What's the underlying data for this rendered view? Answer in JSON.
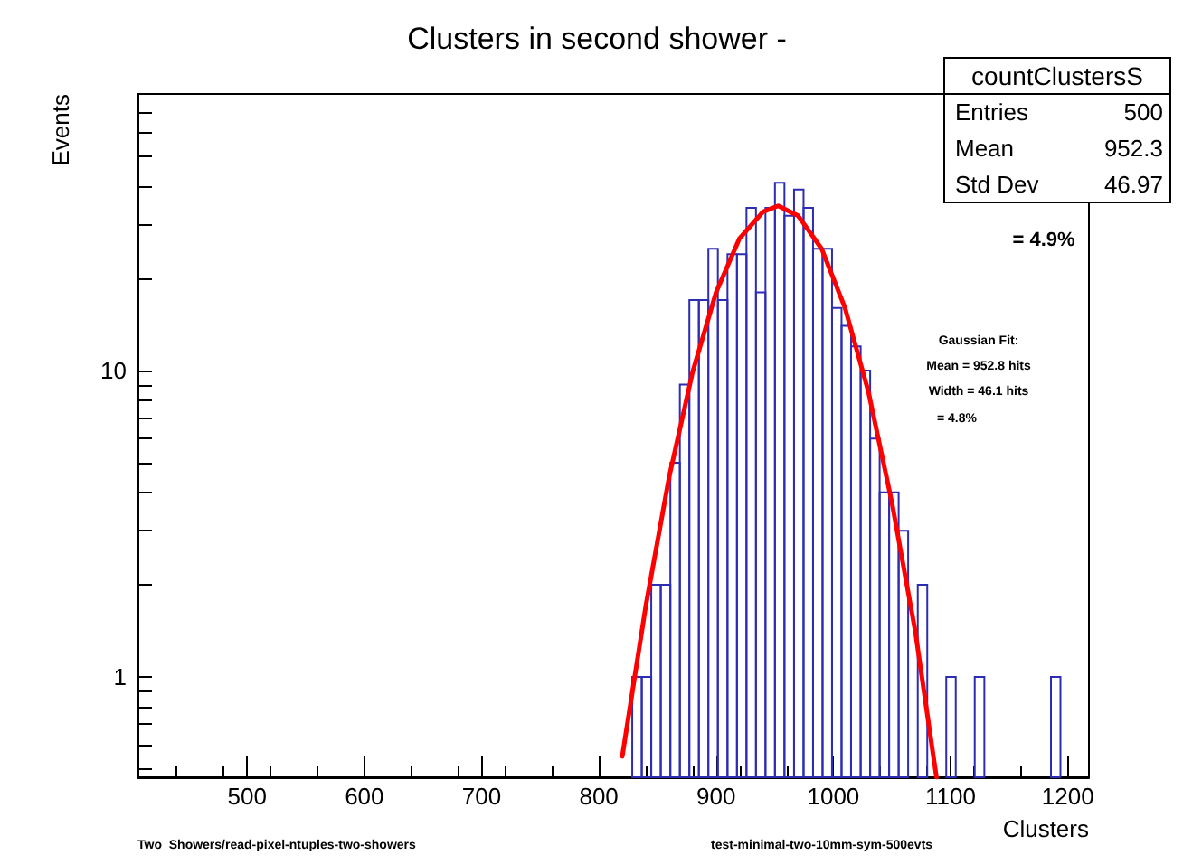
{
  "chart_data": {
    "type": "histogram",
    "title": "Clusters in second shower -",
    "xlabel": "Clusters",
    "ylabel": "Events",
    "bins": [
      828.5,
      836.6,
      844.7,
      852.8,
      861.0,
      869.1,
      877.2,
      885.3,
      893.4,
      901.5,
      909.7,
      917.8,
      925.9,
      934.0,
      942.1,
      950.2,
      958.3,
      966.5,
      974.6,
      982.7,
      990.8,
      998.9,
      1007.0,
      1015.1,
      1023.3,
      1031.4,
      1039.5,
      1047.6,
      1055.7,
      1063.8,
      1072.0,
      1080.1,
      1088.2,
      1096.3,
      1104.4,
      1112.5,
      1120.6,
      1128.8,
      1136.9,
      1145.0,
      1153.1,
      1161.2,
      1169.3,
      1177.4,
      1185.6,
      1193.7
    ],
    "values": [
      1,
      1,
      2,
      2,
      5,
      9,
      17,
      17,
      25,
      17,
      24,
      24,
      34,
      18,
      34,
      41,
      32,
      39,
      34,
      25,
      25,
      16,
      14,
      12,
      10,
      6,
      4,
      4,
      3,
      null,
      2,
      null,
      null,
      1,
      null,
      null,
      1,
      null,
      null,
      null,
      null,
      null,
      null,
      null,
      1
    ],
    "color": "#2d2db4",
    "series": [
      {
        "type": "line",
        "color": "#ff0000",
        "x": [
          820,
          840,
          860,
          880,
          900,
          920,
          940,
          953,
          970,
          990,
          1010,
          1030,
          1050,
          1070,
          1085,
          1088
        ],
        "values": [
          0.55,
          1.7,
          4.5,
          9.9,
          18,
          27,
          33,
          34.5,
          32,
          25,
          16,
          8.5,
          3.7,
          1.4,
          0.56,
          0.47
        ]
      }
    ],
    "xlim": [
      406.5,
      1218
    ],
    "xticks": [
      500,
      600,
      700,
      800,
      900,
      1000,
      1100,
      1200
    ],
    "ylim": [
      0.47,
      80
    ],
    "yticks": [
      {
        "value": 0.5,
        "label": null
      },
      {
        "value": 0.6,
        "label": null
      },
      {
        "value": 0.7,
        "label": null
      },
      {
        "value": 0.8,
        "label": null
      },
      {
        "value": 0.9,
        "label": null
      },
      1,
      {
        "value": 2,
        "label": null
      },
      {
        "value": 3,
        "label": null
      },
      {
        "value": 4,
        "label": null
      },
      {
        "value": 5,
        "label": null
      },
      {
        "value": 6,
        "label": null
      },
      {
        "value": 7,
        "label": null
      },
      {
        "value": 8,
        "label": null
      },
      {
        "value": 9,
        "label": null
      },
      10,
      {
        "value": 20,
        "label": null
      },
      {
        "value": 30,
        "label": null
      },
      {
        "value": 40,
        "label": null
      },
      {
        "value": 50,
        "label": null
      },
      {
        "value": 60,
        "label": null
      },
      {
        "value": 70,
        "label": null
      }
    ],
    "log": true,
    "grid": false,
    "legend": false,
    "marker": "none",
    "line_style": "solid",
    "annotations": [
      "countClustersS",
      "Entries",
      "500",
      "Mean",
      "952.3",
      "Std Dev",
      "46.97",
      "= 4.9%",
      "Gaussian Fit:",
      "Mean = 952.8 hits",
      "Width = 46.1 hits",
      "= 4.8%",
      "Two_Showers/read-pixel-ntuples-two-showers",
      "test-minimal-two-10mm-sym-500evts"
    ]
  }
}
